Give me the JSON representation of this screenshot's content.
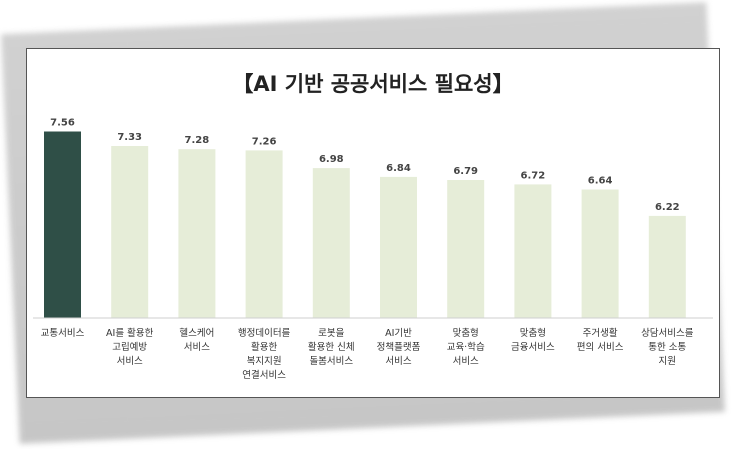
{
  "chart_data": {
    "type": "bar",
    "title": "【AI 기반 공공서비스 필요성】",
    "categories": [
      [
        "교통서비스"
      ],
      [
        "AI를 활용한",
        "고립예방",
        "서비스"
      ],
      [
        "헬스케어",
        "서비스"
      ],
      [
        "행정데이터를",
        "활용한",
        "복지지원",
        "연결서비스"
      ],
      [
        "로봇을",
        "활용한 신체",
        "돌봄서비스"
      ],
      [
        "AI기반",
        "정책플랫폼",
        "서비스"
      ],
      [
        "맞춤형",
        "교육·학습",
        "서비스"
      ],
      [
        "맞춤형",
        "금융서비스"
      ],
      [
        "주거생활",
        "편의 서비스"
      ],
      [
        "상담서비스를",
        "통한 소통",
        "지원"
      ]
    ],
    "values": [
      7.56,
      7.33,
      7.28,
      7.26,
      6.98,
      6.84,
      6.79,
      6.72,
      6.64,
      6.22
    ],
    "value_labels": [
      "7.56",
      "7.33",
      "7.28",
      "7.26",
      "6.98",
      "6.84",
      "6.79",
      "6.72",
      "6.64",
      "6.22"
    ],
    "highlight_index": 0,
    "colors": {
      "highlight": "#2f4f47",
      "bar": "#e6edd8",
      "baseline": "#cfcfcf"
    },
    "ylim": [
      4.6,
      7.6
    ],
    "grid": false,
    "legend": "none"
  }
}
